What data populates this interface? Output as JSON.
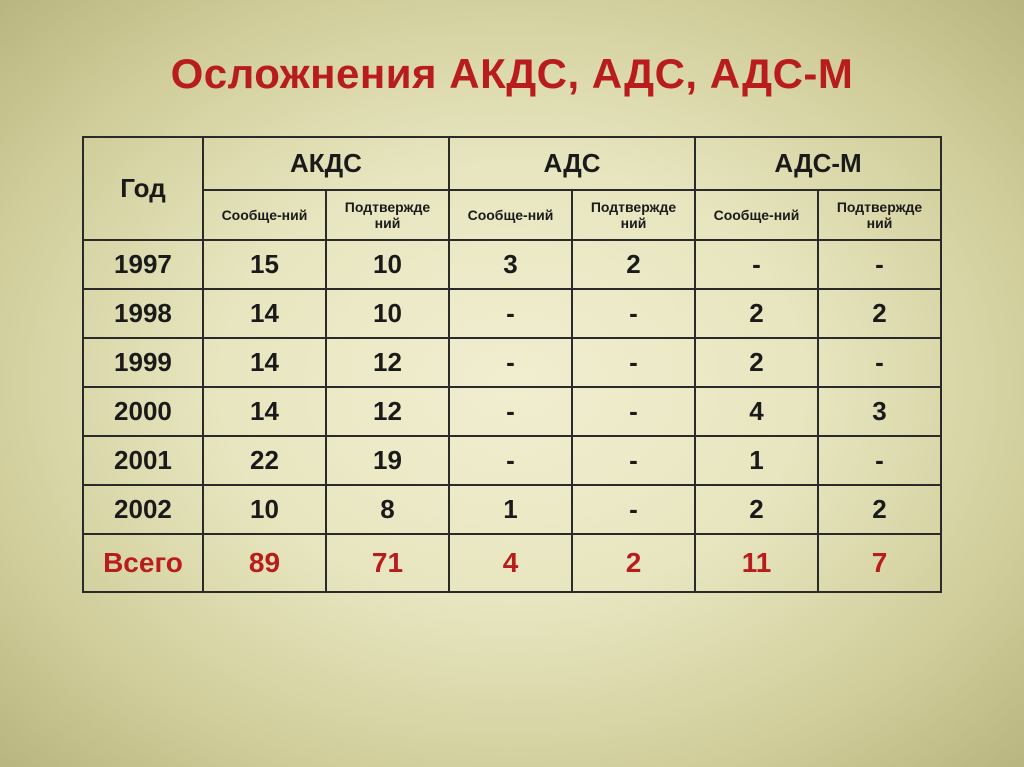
{
  "title": "Осложнения АКДС, АДС, АДС-М",
  "table": {
    "year_header": "Год",
    "groups": [
      "АКДС",
      "АДС",
      "АДС-М"
    ],
    "subheaders": [
      "Сообще-ний",
      "Подтвержде\nний",
      "Сообще-ний",
      "Подтвержде\nний",
      "Сообще-ний",
      "Подтвержде\nний"
    ],
    "rows": [
      {
        "year": "1997",
        "cells": [
          "15",
          "10",
          "3",
          "2",
          "-",
          "-"
        ]
      },
      {
        "year": "1998",
        "cells": [
          "14",
          "10",
          "-",
          "-",
          "2",
          "2"
        ]
      },
      {
        "year": "1999",
        "cells": [
          "14",
          "12",
          "-",
          "-",
          "2",
          "-"
        ]
      },
      {
        "year": "2000",
        "cells": [
          "14",
          "12",
          "-",
          "-",
          "4",
          "3"
        ]
      },
      {
        "year": "2001",
        "cells": [
          "22",
          "19",
          "-",
          "-",
          "1",
          "-"
        ]
      },
      {
        "year": "2002",
        "cells": [
          "10",
          "8",
          "1",
          "-",
          "2",
          "2"
        ]
      }
    ],
    "totals": {
      "label": "Всего",
      "cells": [
        "89",
        "71",
        "4",
        "2",
        "11",
        "7"
      ]
    },
    "colors": {
      "title": "#b81c1c",
      "text": "#1a1a1a",
      "totals": "#b81c1c",
      "border": "#2a2a2a"
    },
    "font_sizes": {
      "title": 42,
      "group_header": 26,
      "sub_header": 14,
      "body": 26,
      "totals": 28
    }
  }
}
